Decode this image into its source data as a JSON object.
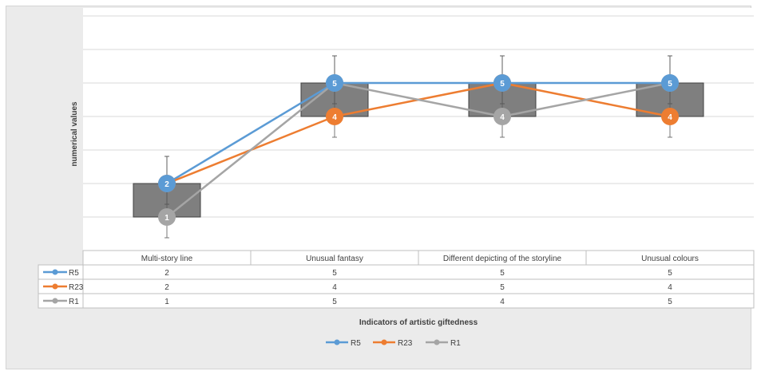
{
  "chart_data": {
    "type": "line",
    "title": "",
    "xlabel": "Indicators of artistic giftedness",
    "ylabel": "numerical values",
    "ylim": [
      0,
      6
    ],
    "grid": true,
    "categories": [
      "Multi-story line",
      "Unusual fantasy",
      "Different depicting of the storyline",
      "Unusual colours"
    ],
    "series": [
      {
        "name": "R5",
        "values": [
          2,
          5,
          5,
          5
        ],
        "color": "#5b9bd5"
      },
      {
        "name": "R23",
        "values": [
          2,
          4,
          5,
          4
        ],
        "color": "#ed7d31"
      },
      {
        "name": "R1",
        "values": [
          1,
          5,
          4,
          5
        ],
        "color": "#a5a5a5"
      }
    ],
    "legend_position": "bottom",
    "data_table": true,
    "box_color": "#7f7f7f"
  }
}
